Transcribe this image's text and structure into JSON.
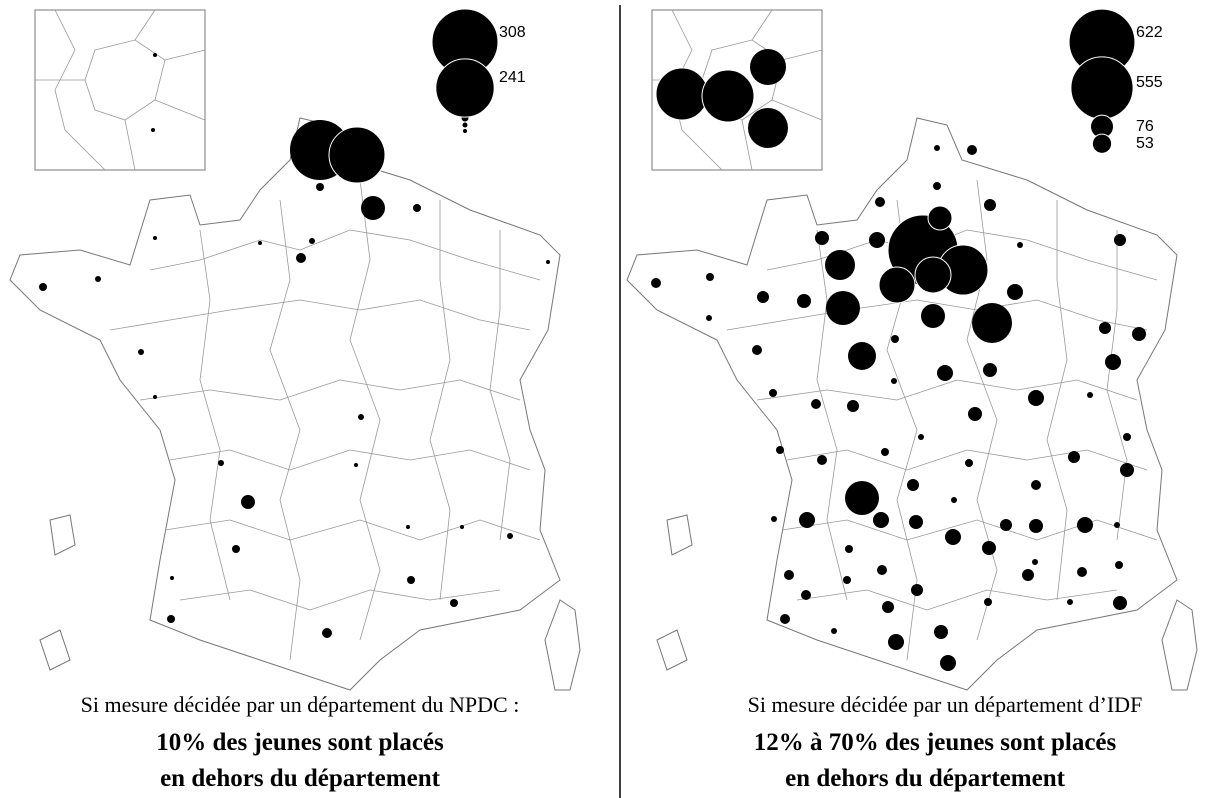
{
  "panels": [
    {
      "legend": [
        308,
        241
      ],
      "caption": [
        "Si mesure décidée par un département du NPDC :",
        "10% des jeunes sont placés",
        "en dehors du département"
      ]
    },
    {
      "legend": [
        622,
        555,
        76,
        53
      ],
      "caption": [
        "Si mesure décidée par un département d’IDF",
        "12% à 70% des jeunes sont placés",
        "en dehors du département"
      ]
    }
  ]
}
